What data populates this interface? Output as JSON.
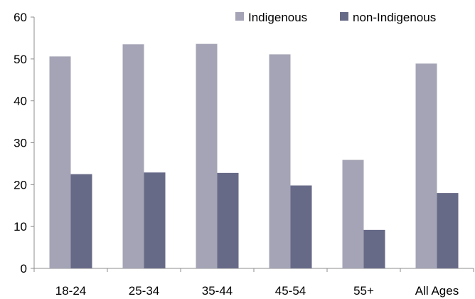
{
  "chart_data": {
    "type": "bar",
    "categories": [
      "18-24",
      "25-34",
      "35-44",
      "45-54",
      "55+",
      "All Ages"
    ],
    "series": [
      {
        "name": "Indigenous",
        "color": "#a4a4b6",
        "values": [
          50.6,
          53.5,
          53.6,
          51.1,
          25.9,
          48.9
        ]
      },
      {
        "name": "non-Indigenous",
        "color": "#676a87",
        "values": [
          22.5,
          22.9,
          22.8,
          19.8,
          9.2,
          18.0
        ]
      }
    ],
    "title": "",
    "xlabel": "",
    "ylabel": "",
    "ylim": [
      0,
      60
    ],
    "yticks": [
      0,
      10,
      20,
      30,
      40,
      50,
      60
    ],
    "grid": false,
    "legend_position": "top-right"
  }
}
